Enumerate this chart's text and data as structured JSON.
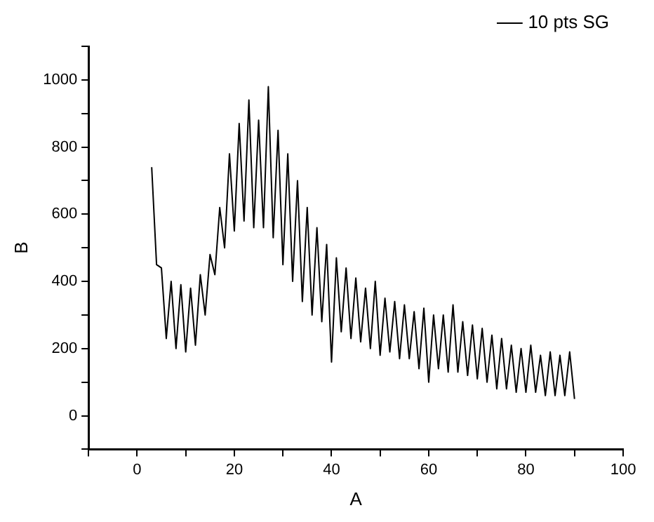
{
  "chart_data": {
    "type": "line",
    "xlabel": "A",
    "ylabel": "B",
    "legend": "top right",
    "marker": "none",
    "line_style": "solid",
    "grid": false,
    "xlim": [
      -10,
      100
    ],
    "xticks": [
      {
        "value": -10,
        "label": null
      },
      0,
      {
        "value": 10,
        "label": null
      },
      20,
      {
        "value": 30,
        "label": null
      },
      40,
      {
        "value": 50,
        "label": null
      },
      60,
      {
        "value": 70,
        "label": null
      },
      80,
      {
        "value": 90,
        "label": null
      },
      100
    ],
    "ylim": [
      -100,
      1100
    ],
    "yticks": [
      {
        "value": -100,
        "label": null
      },
      0,
      {
        "value": 100,
        "label": null
      },
      200,
      {
        "value": 300,
        "label": null
      },
      400,
      {
        "value": 500,
        "label": null
      },
      600,
      {
        "value": 700,
        "label": null
      },
      800,
      {
        "value": 900,
        "label": null
      },
      1000,
      {
        "value": 1100,
        "label": null
      }
    ],
    "x": [
      3,
      4,
      5,
      6,
      7,
      8,
      9,
      10,
      11,
      12,
      13,
      14,
      15,
      16,
      17,
      18,
      19,
      20,
      21,
      22,
      23,
      24,
      25,
      26,
      27,
      28,
      29,
      30,
      31,
      32,
      33,
      34,
      35,
      36,
      37,
      38,
      39,
      40,
      41,
      42,
      43,
      44,
      45,
      46,
      47,
      48,
      49,
      50,
      51,
      52,
      53,
      54,
      55,
      56,
      57,
      58,
      59,
      60,
      61,
      62,
      63,
      64,
      65,
      66,
      67,
      68,
      69,
      70,
      71,
      72,
      73,
      74,
      75,
      76,
      77,
      78,
      79,
      80,
      81,
      82,
      83,
      84,
      85,
      86,
      87,
      88,
      89,
      90
    ],
    "series": [
      {
        "name": "10 pts SG",
        "color": "#000000",
        "values": [
          740,
          450,
          440,
          230,
          400,
          200,
          390,
          190,
          380,
          210,
          420,
          300,
          480,
          420,
          620,
          500,
          780,
          550,
          870,
          580,
          940,
          560,
          880,
          560,
          980,
          530,
          850,
          450,
          780,
          400,
          700,
          340,
          620,
          300,
          560,
          280,
          510,
          160,
          470,
          250,
          440,
          230,
          410,
          220,
          380,
          200,
          400,
          180,
          350,
          190,
          340,
          170,
          330,
          170,
          310,
          140,
          320,
          100,
          300,
          140,
          300,
          130,
          330,
          130,
          280,
          120,
          270,
          110,
          260,
          100,
          240,
          80,
          230,
          80,
          210,
          70,
          200,
          70,
          210,
          70,
          180,
          60,
          190,
          60,
          180,
          60,
          190,
          50
        ]
      }
    ]
  }
}
